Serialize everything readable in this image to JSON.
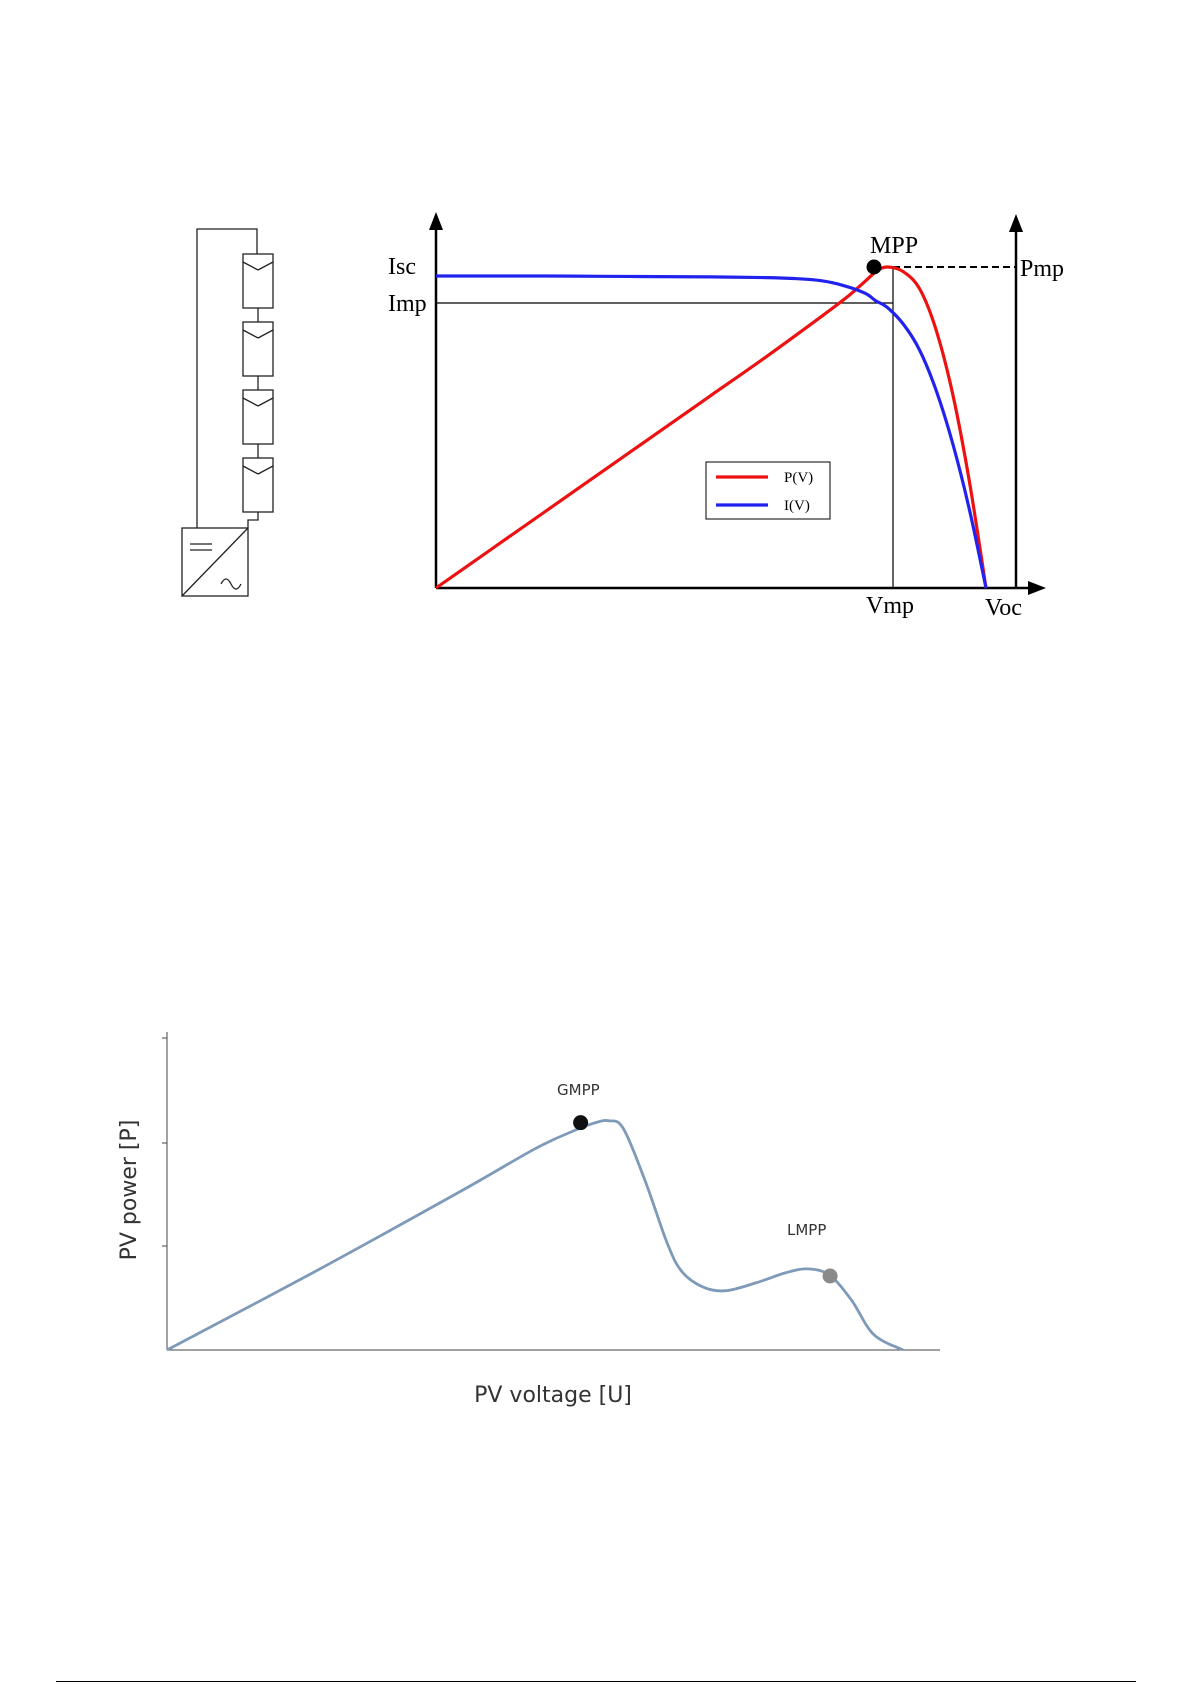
{
  "colors": {
    "power": "#ee1111",
    "current": "#2222ee",
    "gmpp_curve": "#7f9ab9",
    "gmpp_dot": "#111111",
    "lmpp_dot": "#8a8a8a"
  },
  "chart_data": [
    {
      "type": "line",
      "title": "",
      "xlabel": "",
      "ylabel": "",
      "grid": false,
      "legend_position": "center",
      "x_ticks": [
        "Vmp",
        "Voc"
      ],
      "y_ticks": [
        "Isc",
        "Imp"
      ],
      "secondary_y_ticks": [
        "Pmp"
      ],
      "point_label": "MPP",
      "series": [
        {
          "name": "P(V)",
          "color": "#ee1111",
          "x": [
            0,
            0.1,
            0.2,
            0.3,
            0.4,
            0.5,
            0.6,
            0.7,
            0.75,
            0.78,
            0.8,
            0.82,
            0.85,
            0.88,
            0.91,
            0.94,
            0.97,
            1.0
          ],
          "y": [
            0,
            0.12,
            0.24,
            0.36,
            0.48,
            0.6,
            0.72,
            0.845,
            0.91,
            0.955,
            0.985,
            1.0,
            0.985,
            0.93,
            0.8,
            0.6,
            0.33,
            0.0
          ]
        },
        {
          "name": "I(V)",
          "color": "#2222ee",
          "x": [
            0,
            0.1,
            0.2,
            0.3,
            0.4,
            0.5,
            0.6,
            0.65,
            0.7,
            0.74,
            0.78,
            0.8,
            0.82,
            0.85,
            0.88,
            0.91,
            0.94,
            0.97,
            1.0
          ],
          "y": [
            1.0,
            1.0,
            1.0,
            0.999,
            0.998,
            0.997,
            0.995,
            0.992,
            0.985,
            0.97,
            0.945,
            0.92,
            0.9,
            0.845,
            0.76,
            0.63,
            0.46,
            0.25,
            0.0
          ]
        }
      ],
      "mpp": {
        "x": 0.82,
        "y": 1.0
      }
    },
    {
      "type": "line",
      "title": "",
      "xlabel": "PV voltage [U]",
      "ylabel": "PV power [P]",
      "grid": false,
      "series": [
        {
          "name": "",
          "x": [
            0,
            0.2,
            0.4,
            0.5,
            0.55,
            0.58,
            0.6,
            0.62,
            0.65,
            0.68,
            0.7,
            0.73,
            0.76,
            0.8,
            0.84,
            0.87,
            0.9,
            0.93,
            0.96,
            1.0
          ],
          "y": [
            0,
            0.25,
            0.51,
            0.645,
            0.7,
            0.727,
            0.735,
            0.71,
            0.54,
            0.34,
            0.25,
            0.2,
            0.19,
            0.215,
            0.247,
            0.26,
            0.24,
            0.16,
            0.05,
            0.0
          ]
        }
      ],
      "annotations": [
        {
          "label": "GMPP",
          "x": 0.6,
          "y": 0.735
        },
        {
          "label": "LMPP",
          "x": 0.905,
          "y": 0.25
        }
      ]
    }
  ]
}
